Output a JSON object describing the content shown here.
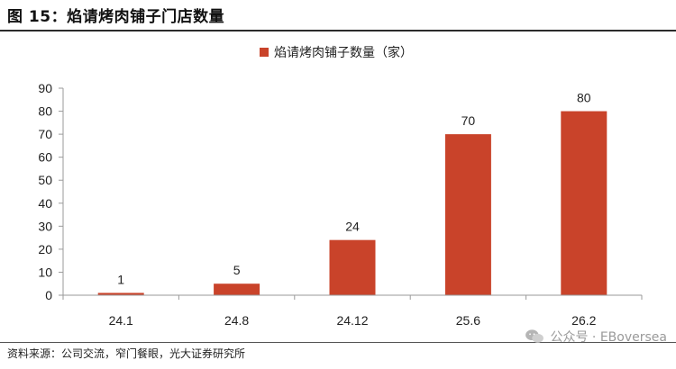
{
  "figure_title": "图 15：焰请烤肉铺子门店数量",
  "source_note": "资料来源：公司交流，窄门餐眼，光大证券研究所",
  "watermark": {
    "text": "公众号 · EBoversea",
    "icon": "wechat-icon"
  },
  "chart_data": {
    "type": "bar",
    "categories": [
      "24.1",
      "24.8",
      "24.12",
      "25.6",
      "26.2"
    ],
    "series": [
      {
        "name": "焰请烤肉铺子数量（家）",
        "values": [
          1,
          5,
          24,
          70,
          80
        ],
        "color": "#c9432a"
      }
    ],
    "ylim": [
      0,
      90
    ],
    "yticks": [
      0,
      10,
      20,
      30,
      40,
      50,
      60,
      70,
      80,
      90
    ],
    "legend_position": "top-center",
    "grid": false,
    "data_labels": true
  }
}
